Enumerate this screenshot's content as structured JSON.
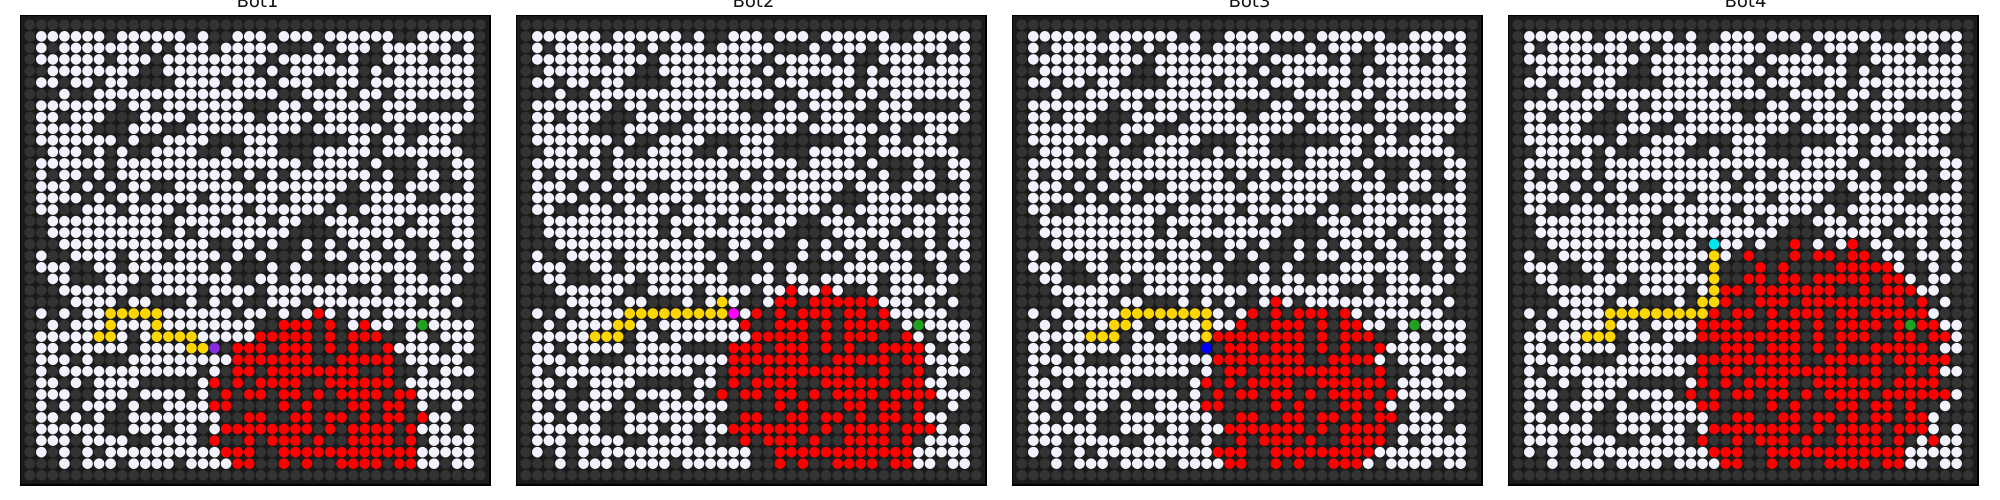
{
  "figure": {
    "panels": [
      {
        "title": "Bot1",
        "bot_color": "#8a2be2"
      },
      {
        "title": "Bot2",
        "bot_color": "#ff00ff"
      },
      {
        "title": "Bot3",
        "bot_color": "#0000ff"
      },
      {
        "title": "Bot4",
        "bot_color": "#00e5ee"
      }
    ]
  },
  "chart_data": {
    "type": "heatmap",
    "grid_size": 40,
    "legend": "none",
    "colors": {
      "background": "#1a1a1a",
      "blocked_cell": "#333333",
      "open_cell": "#f2f2ff",
      "fire": "#ff0000",
      "path": "#ffd700",
      "button": "#1fa01f"
    },
    "panels": [
      {
        "title": "Bot1",
        "bot": [
          16,
          28
        ],
        "button": [
          34,
          26
        ],
        "path": [
          [
            6,
            27
          ],
          [
            7,
            27
          ],
          [
            7,
            26
          ],
          [
            7,
            25
          ],
          [
            8,
            25
          ],
          [
            9,
            25
          ],
          [
            10,
            25
          ],
          [
            11,
            25
          ],
          [
            11,
            26
          ],
          [
            11,
            27
          ],
          [
            12,
            27
          ],
          [
            13,
            27
          ],
          [
            14,
            27
          ],
          [
            14,
            28
          ],
          [
            15,
            28
          ]
        ],
        "fire": {
          "center": [
            25,
            34
          ],
          "radius": 9
        }
      },
      {
        "title": "Bot2",
        "bot": [
          18,
          25
        ],
        "button": [
          34,
          26
        ],
        "path": [
          [
            6,
            27
          ],
          [
            7,
            27
          ],
          [
            8,
            27
          ],
          [
            8,
            26
          ],
          [
            9,
            26
          ],
          [
            9,
            25
          ],
          [
            10,
            25
          ],
          [
            11,
            25
          ],
          [
            12,
            25
          ],
          [
            13,
            25
          ],
          [
            14,
            25
          ],
          [
            15,
            25
          ],
          [
            16,
            25
          ],
          [
            17,
            25
          ],
          [
            17,
            24
          ]
        ],
        "fire": {
          "center": [
            26,
            32
          ],
          "radius": 9
        }
      },
      {
        "title": "Bot3",
        "bot": [
          16,
          28
        ],
        "button": [
          34,
          26
        ],
        "path": [
          [
            6,
            27
          ],
          [
            7,
            27
          ],
          [
            8,
            27
          ],
          [
            8,
            26
          ],
          [
            9,
            26
          ],
          [
            9,
            25
          ],
          [
            10,
            25
          ],
          [
            11,
            25
          ],
          [
            12,
            25
          ],
          [
            13,
            25
          ],
          [
            14,
            25
          ],
          [
            15,
            25
          ],
          [
            16,
            25
          ],
          [
            16,
            26
          ],
          [
            16,
            27
          ]
        ],
        "fire": {
          "center": [
            24,
            32
          ],
          "radius": 8
        }
      },
      {
        "title": "Bot4",
        "bot": [
          17,
          19
        ],
        "button": [
          34,
          26
        ],
        "path": [
          [
            6,
            27
          ],
          [
            7,
            27
          ],
          [
            8,
            27
          ],
          [
            8,
            26
          ],
          [
            8,
            25
          ],
          [
            9,
            25
          ],
          [
            10,
            25
          ],
          [
            11,
            25
          ],
          [
            12,
            25
          ],
          [
            13,
            25
          ],
          [
            14,
            25
          ],
          [
            15,
            25
          ],
          [
            16,
            25
          ],
          [
            16,
            24
          ],
          [
            17,
            24
          ],
          [
            17,
            23
          ],
          [
            17,
            22
          ],
          [
            17,
            21
          ],
          [
            17,
            20
          ]
        ],
        "fire": {
          "center": [
            26,
            30
          ],
          "radius": 11
        }
      }
    ]
  }
}
